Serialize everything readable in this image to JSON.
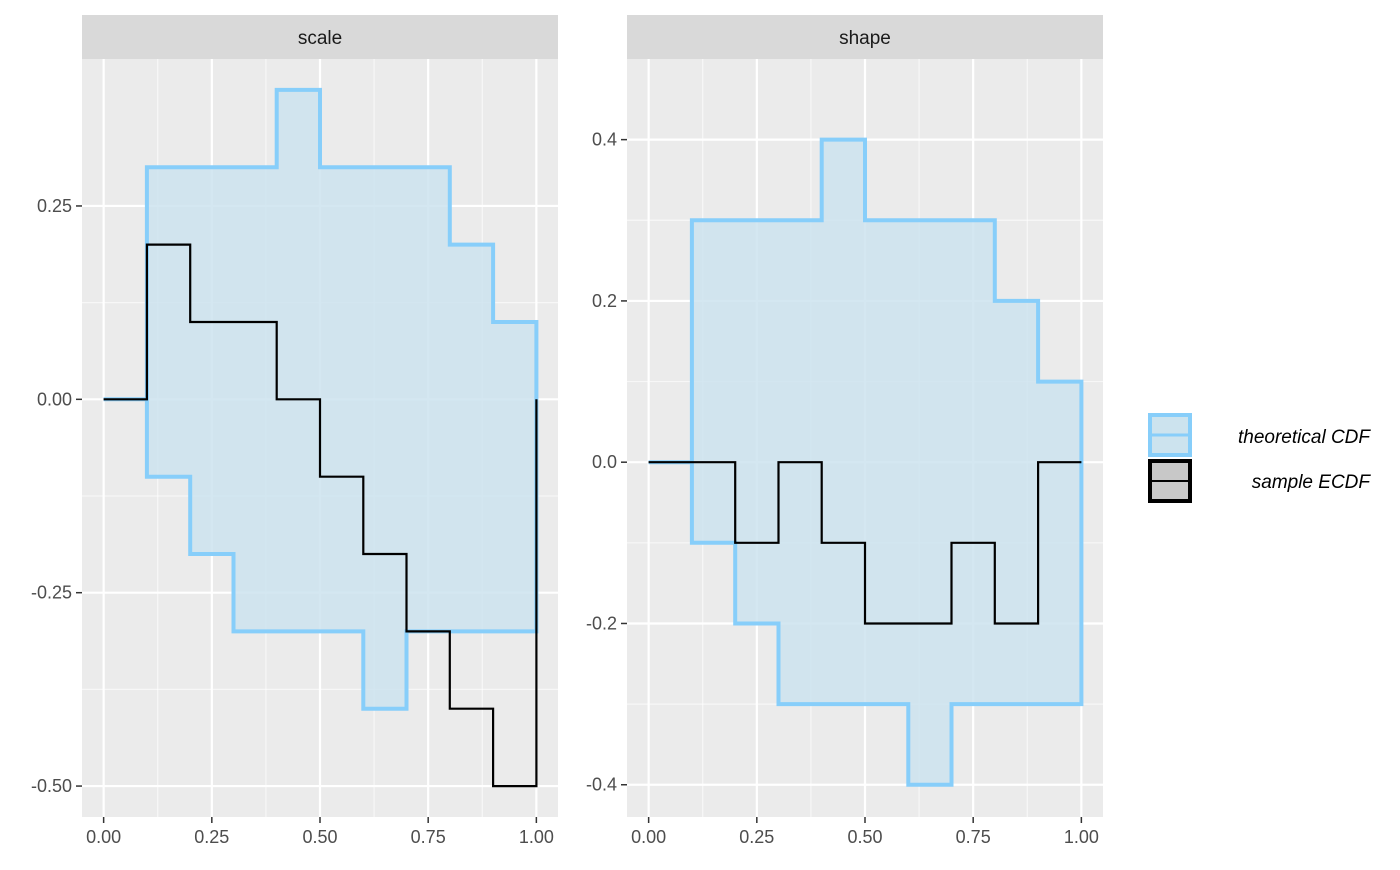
{
  "colors": {
    "panel_bg": "#ebebeb",
    "strip_bg": "#d9d9d9",
    "grid_major": "#ffffff",
    "band_fill": "#cce3ee",
    "band_stroke": "#87cefa",
    "ecdf_line": "#000000"
  },
  "chart_data": [
    {
      "type": "line",
      "panel": "scale",
      "title": "scale",
      "xlabel": "",
      "ylabel": "",
      "xlim": [
        -0.05,
        1.05
      ],
      "ylim": [
        -0.54,
        0.44
      ],
      "x_ticks": [
        0,
        0.25,
        0.5,
        0.75,
        1
      ],
      "x_tick_labels": [
        "0.00",
        "0.25",
        "0.50",
        "0.75",
        "1.00"
      ],
      "y_ticks": [
        -0.5,
        -0.25,
        0,
        0.25
      ],
      "y_tick_labels": [
        "-0.50",
        "-0.25",
        "0.00",
        "0.25"
      ],
      "grid": true,
      "series": [
        {
          "name": "theoretical CDF",
          "kind": "band",
          "x": [
            0,
            0.1,
            0.2,
            0.3,
            0.4,
            0.5,
            0.6,
            0.7,
            0.8,
            0.9,
            1.0
          ],
          "upper": [
            0,
            0.3,
            0.3,
            0.3,
            0.4,
            0.3,
            0.3,
            0.3,
            0.2,
            0.1,
            0
          ],
          "lower": [
            0,
            -0.1,
            -0.2,
            -0.3,
            -0.3,
            -0.3,
            -0.4,
            -0.3,
            -0.3,
            -0.3,
            0
          ]
        },
        {
          "name": "sample ECDF",
          "kind": "step",
          "x": [
            0,
            0.1,
            0.2,
            0.3,
            0.4,
            0.5,
            0.6,
            0.7,
            0.8,
            0.9,
            1.0
          ],
          "y": [
            0,
            0.2,
            0.1,
            0.1,
            0,
            -0.1,
            -0.2,
            -0.3,
            -0.4,
            -0.5,
            0
          ]
        }
      ]
    },
    {
      "type": "line",
      "panel": "shape",
      "title": "shape",
      "xlabel": "",
      "ylabel": "",
      "xlim": [
        -0.05,
        1.05
      ],
      "ylim": [
        -0.44,
        0.5
      ],
      "x_ticks": [
        0,
        0.25,
        0.5,
        0.75,
        1
      ],
      "x_tick_labels": [
        "0.00",
        "0.25",
        "0.50",
        "0.75",
        "1.00"
      ],
      "y_ticks": [
        -0.4,
        -0.2,
        0,
        0.2,
        0.4
      ],
      "y_tick_labels": [
        "-0.4",
        "-0.2",
        "0.0",
        "0.2",
        "0.4"
      ],
      "grid": true,
      "series": [
        {
          "name": "theoretical CDF",
          "kind": "band",
          "x": [
            0,
            0.1,
            0.2,
            0.3,
            0.4,
            0.5,
            0.6,
            0.7,
            0.8,
            0.9,
            1.0
          ],
          "upper": [
            0,
            0.3,
            0.3,
            0.3,
            0.4,
            0.3,
            0.3,
            0.3,
            0.2,
            0.1,
            0
          ],
          "lower": [
            0,
            -0.1,
            -0.2,
            -0.3,
            -0.3,
            -0.3,
            -0.4,
            -0.3,
            -0.3,
            -0.3,
            0
          ]
        },
        {
          "name": "sample ECDF",
          "kind": "step",
          "x": [
            0,
            0.1,
            0.2,
            0.3,
            0.4,
            0.5,
            0.6,
            0.7,
            0.8,
            0.9,
            1.0
          ],
          "y": [
            0,
            0,
            -0.1,
            0,
            -0.1,
            -0.2,
            -0.2,
            -0.1,
            -0.2,
            0,
            0
          ]
        }
      ]
    }
  ],
  "legend": {
    "placement": "right",
    "items": [
      {
        "label": "theoretical CDF",
        "key": "band"
      },
      {
        "label": "sample ECDF",
        "key": "line"
      }
    ]
  }
}
